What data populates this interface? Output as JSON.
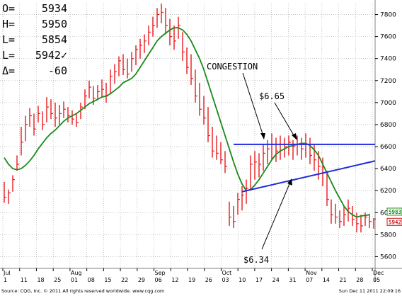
{
  "readout": [
    {
      "label": "O=",
      "value": "5934"
    },
    {
      "label": "H=",
      "value": "5950"
    },
    {
      "label": "L=",
      "value": "5854"
    },
    {
      "label": "L=",
      "value": "5942✓"
    },
    {
      "label": "Δ=",
      "value": "-60"
    }
  ],
  "footer": {
    "left": "Source: CQG, Inc. © 2011 All rights reserved worldwide. www.cqg.com",
    "right": "Sun Dec 11 2011 22:09:16"
  },
  "annotations": {
    "congestion": "CONGESTION",
    "upper_price": "$6.65",
    "lower_price": "$6.34"
  },
  "price_tags": [
    {
      "label": "5983",
      "value": 5983,
      "color": "#1a8a1a"
    },
    {
      "label": "5942",
      "value": 5942,
      "color": "#cc1a1a"
    }
  ],
  "colors": {
    "bars": "#e8191c",
    "moving_average": "#1a8a1a",
    "trendlines": "#1f2bdc",
    "grid": "#a0a0a0"
  },
  "chart_data": {
    "type": "line",
    "y_axis": {
      "side": "right",
      "range": [
        5500,
        7900
      ],
      "ticks": [
        "7800",
        "7600",
        "7400",
        "7200",
        "7000",
        "6800",
        "6600",
        "6400",
        "6200",
        "6000",
        "5800",
        "5600"
      ]
    },
    "x_axis": {
      "months": [
        "Jul",
        "Aug",
        "Sep",
        "Oct",
        "Nov",
        "Dec"
      ],
      "day_ticks": [
        "1",
        "11",
        "18",
        "25",
        "01",
        "08",
        "15",
        "22",
        "29",
        "06",
        "12",
        "19",
        "26",
        "03",
        "10",
        "17",
        "24",
        "31",
        "07",
        "14",
        "21",
        "28",
        "05"
      ]
    },
    "grid": true,
    "price_bars": [
      {
        "high": 6280,
        "low": 6090,
        "close": 6140
      },
      {
        "high": 6210,
        "low": 6080,
        "close": 6180
      },
      {
        "high": 6340,
        "low": 6190,
        "close": 6300
      },
      {
        "high": 6520,
        "low": 6380,
        "close": 6440
      },
      {
        "high": 6780,
        "low": 6520,
        "close": 6640
      },
      {
        "high": 6880,
        "low": 6650,
        "close": 6800
      },
      {
        "high": 6950,
        "low": 6780,
        "close": 6880
      },
      {
        "high": 6900,
        "low": 6700,
        "close": 6760
      },
      {
        "high": 6970,
        "low": 6820,
        "close": 6900
      },
      {
        "high": 6920,
        "low": 6750,
        "close": 6800
      },
      {
        "high": 7050,
        "low": 6820,
        "close": 6960
      },
      {
        "high": 7030,
        "low": 6850,
        "close": 6900
      },
      {
        "high": 7000,
        "low": 6780,
        "close": 6860
      },
      {
        "high": 6980,
        "low": 6800,
        "close": 6900
      },
      {
        "high": 7010,
        "low": 6860,
        "close": 6940
      },
      {
        "high": 6960,
        "low": 6820,
        "close": 6880
      },
      {
        "high": 6930,
        "low": 6800,
        "close": 6850
      },
      {
        "high": 6900,
        "low": 6780,
        "close": 6820
      },
      {
        "high": 7000,
        "low": 6850,
        "close": 6960
      },
      {
        "high": 7120,
        "low": 6940,
        "close": 7060
      },
      {
        "high": 7200,
        "low": 7040,
        "close": 7140
      },
      {
        "high": 7150,
        "low": 6980,
        "close": 7040
      },
      {
        "high": 7160,
        "low": 7020,
        "close": 7100
      },
      {
        "high": 7210,
        "low": 7050,
        "close": 7120
      },
      {
        "high": 7180,
        "low": 7000,
        "close": 7060
      },
      {
        "high": 7300,
        "low": 7080,
        "close": 7240
      },
      {
        "high": 7350,
        "low": 7170,
        "close": 7280
      },
      {
        "high": 7420,
        "low": 7240,
        "close": 7380
      },
      {
        "high": 7440,
        "low": 7250,
        "close": 7300
      },
      {
        "high": 7400,
        "low": 7220,
        "close": 7260
      },
      {
        "high": 7460,
        "low": 7280,
        "close": 7400
      },
      {
        "high": 7520,
        "low": 7340,
        "close": 7480
      },
      {
        "high": 7580,
        "low": 7400,
        "close": 7520
      },
      {
        "high": 7620,
        "low": 7450,
        "close": 7560
      },
      {
        "high": 7700,
        "low": 7520,
        "close": 7640
      },
      {
        "high": 7780,
        "low": 7600,
        "close": 7700
      },
      {
        "high": 7860,
        "low": 7680,
        "close": 7800
      },
      {
        "high": 7900,
        "low": 7720,
        "close": 7820
      },
      {
        "high": 7860,
        "low": 7620,
        "close": 7700
      },
      {
        "high": 7760,
        "low": 7520,
        "close": 7600
      },
      {
        "high": 7700,
        "low": 7480,
        "close": 7560
      },
      {
        "high": 7780,
        "low": 7580,
        "close": 7700
      },
      {
        "high": 7640,
        "low": 7380,
        "close": 7460
      },
      {
        "high": 7500,
        "low": 7260,
        "close": 7320
      },
      {
        "high": 7440,
        "low": 7160,
        "close": 7220
      },
      {
        "high": 7300,
        "low": 7000,
        "close": 7060
      },
      {
        "high": 7180,
        "low": 6880,
        "close": 6940
      },
      {
        "high": 7060,
        "low": 6800,
        "close": 6860
      },
      {
        "high": 6960,
        "low": 6640,
        "close": 6700
      },
      {
        "high": 6780,
        "low": 6500,
        "close": 6560
      },
      {
        "high": 6700,
        "low": 6480,
        "close": 6540
      },
      {
        "high": 6640,
        "low": 6440,
        "close": 6480
      },
      {
        "high": 6560,
        "low": 6360,
        "close": 6420
      },
      {
        "high": 6100,
        "low": 5880,
        "close": 5960
      },
      {
        "high": 6060,
        "low": 5860,
        "close": 5920
      },
      {
        "high": 6180,
        "low": 5980,
        "close": 6120
      },
      {
        "high": 6240,
        "low": 6020,
        "close": 6160
      },
      {
        "high": 6300,
        "low": 6080,
        "close": 6220
      },
      {
        "high": 6520,
        "low": 6200,
        "close": 6440
      },
      {
        "high": 6560,
        "low": 6300,
        "close": 6460
      },
      {
        "high": 6540,
        "low": 6320,
        "close": 6440
      },
      {
        "high": 6620,
        "low": 6380,
        "close": 6540
      },
      {
        "high": 6660,
        "low": 6440,
        "close": 6580
      },
      {
        "high": 6720,
        "low": 6480,
        "close": 6620
      },
      {
        "high": 6680,
        "low": 6460,
        "close": 6560
      },
      {
        "high": 6700,
        "low": 6480,
        "close": 6620
      },
      {
        "high": 6680,
        "low": 6500,
        "close": 6600
      },
      {
        "high": 6700,
        "low": 6520,
        "close": 6640
      },
      {
        "high": 6660,
        "low": 6480,
        "close": 6600
      },
      {
        "high": 6700,
        "low": 6520,
        "close": 6620
      },
      {
        "high": 6680,
        "low": 6480,
        "close": 6580
      },
      {
        "high": 6720,
        "low": 6500,
        "close": 6620
      },
      {
        "high": 6680,
        "low": 6440,
        "close": 6520
      },
      {
        "high": 6620,
        "low": 6380,
        "close": 6480
      },
      {
        "high": 6560,
        "low": 6300,
        "close": 6420
      },
      {
        "high": 6500,
        "low": 6240,
        "close": 6360
      },
      {
        "high": 6380,
        "low": 6060,
        "close": 6120
      },
      {
        "high": 6120,
        "low": 5900,
        "close": 5980
      },
      {
        "high": 6080,
        "low": 5900,
        "close": 5960
      },
      {
        "high": 6020,
        "low": 5860,
        "close": 5920
      },
      {
        "high": 6060,
        "low": 5880,
        "close": 5980
      },
      {
        "high": 6120,
        "low": 5920,
        "close": 6040
      },
      {
        "high": 6060,
        "low": 5880,
        "close": 5940
      },
      {
        "high": 6000,
        "low": 5820,
        "close": 5900
      },
      {
        "high": 5980,
        "low": 5820,
        "close": 5880
      },
      {
        "high": 6000,
        "low": 5880,
        "close": 5960
      },
      {
        "high": 5990,
        "low": 5860,
        "close": 5920
      },
      {
        "high": 5950,
        "low": 5854,
        "close": 5942
      }
    ],
    "moving_average": [
      6500,
      6440,
      6400,
      6390,
      6400,
      6430,
      6470,
      6520,
      6580,
      6630,
      6680,
      6720,
      6750,
      6790,
      6830,
      6860,
      6880,
      6900,
      6930,
      6960,
      6990,
      7010,
      7030,
      7050,
      7060,
      7080,
      7110,
      7140,
      7180,
      7200,
      7220,
      7260,
      7320,
      7380,
      7440,
      7500,
      7560,
      7600,
      7630,
      7660,
      7680,
      7680,
      7660,
      7620,
      7560,
      7480,
      7400,
      7300,
      7180,
      7060,
      6940,
      6820,
      6700,
      6580,
      6460,
      6350,
      6260,
      6200,
      6210,
      6250,
      6300,
      6360,
      6420,
      6480,
      6530,
      6560,
      6580,
      6600,
      6610,
      6620,
      6630,
      6630,
      6610,
      6570,
      6520,
      6440,
      6360,
      6280,
      6200,
      6130,
      6060,
      6010,
      5980,
      5960,
      5970,
      5975,
      5980
    ],
    "trendlines": [
      {
        "label": "$6.65",
        "from": {
          "bar": 54,
          "value": 6620
        },
        "to": {
          "bar": 87,
          "value": 6620
        }
      },
      {
        "label": "$6.34",
        "from": {
          "bar": 56,
          "value": 6190
        },
        "to": {
          "bar": 87,
          "value": 6470
        }
      }
    ]
  }
}
